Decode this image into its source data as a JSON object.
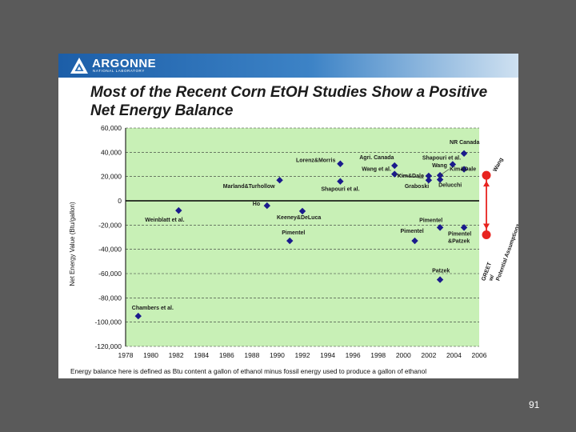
{
  "logo": {
    "name": "ARGONNE",
    "subtitle": "NATIONAL LABORATORY"
  },
  "slide_title": "Most of the Recent Corn EtOH Studies Show a Positive Net Energy Balance",
  "footnote": "Energy balance here is defined as Btu content a gallon of ethanol minus fossil energy used to produce a gallon of ethanol",
  "page_number": "91",
  "colors": {
    "background": "#5a5a5a",
    "banner": "#1c5ea8",
    "plot_fill": "#c8f0b6",
    "marker": "#1a1a8c",
    "greet": "#e8231f"
  },
  "chart_data": {
    "type": "scatter",
    "title": "",
    "xlabel": "",
    "ylabel": "Net Energy Value (Btu/gallon)",
    "xlim": [
      1978,
      2006
    ],
    "ylim": [
      -120000,
      60000
    ],
    "x_ticks": [
      "1978",
      "1980",
      "1982",
      "1984",
      "1986",
      "1988",
      "1990",
      "1992",
      "1994",
      "1996",
      "1998",
      "2000",
      "2002",
      "2004",
      "2006"
    ],
    "y_ticks": [
      "60,000",
      "40,000",
      "20,000",
      "0",
      "-20,000",
      "-40,000",
      "-60,000",
      "-80,000",
      "-100,000",
      "-120,000"
    ],
    "grid": "horizontal dashed",
    "points": [
      {
        "x": 1979.0,
        "y": -95000,
        "label": "Chambers et al."
      },
      {
        "x": 1982.2,
        "y": -8000,
        "label": "Weinblatt et al."
      },
      {
        "x": 1989.2,
        "y": -4000,
        "label": "Ho"
      },
      {
        "x": 1990.2,
        "y": 17000,
        "label": "Marland&Turhollow"
      },
      {
        "x": 1991.0,
        "y": -33000,
        "label": "Pimentel"
      },
      {
        "x": 1992.0,
        "y": -8500,
        "label": "Keeney&DeLuca"
      },
      {
        "x": 1995.0,
        "y": 30500,
        "label": "Lorenz&Morris"
      },
      {
        "x": 1995.0,
        "y": 16000,
        "label": "Shapouri et al."
      },
      {
        "x": 1999.3,
        "y": 29000,
        "label": "Agri. Canada"
      },
      {
        "x": 1999.3,
        "y": 22000,
        "label": "Wang et al."
      },
      {
        "x": 2000.9,
        "y": -33000,
        "label": "Pimentel"
      },
      {
        "x": 2002.0,
        "y": 20500,
        "label": "Kim&Dale"
      },
      {
        "x": 2002.0,
        "y": 17000,
        "label": "Graboski"
      },
      {
        "x": 2002.9,
        "y": 21000,
        "label": "Wang"
      },
      {
        "x": 2002.9,
        "y": 17500,
        "label": "Delucchi"
      },
      {
        "x": 2002.9,
        "y": -22000,
        "label": "Pimentel"
      },
      {
        "x": 2002.9,
        "y": -65000,
        "label": "Patzek"
      },
      {
        "x": 2003.9,
        "y": 30000,
        "label": "Shapouri et al."
      },
      {
        "x": 2004.8,
        "y": 39000,
        "label": "NR Canada"
      },
      {
        "x": 2004.8,
        "y": 26000,
        "label": "Kim&Dale"
      },
      {
        "x": 2004.8,
        "y": -22000,
        "label": "Pimentel&Patzek"
      }
    ],
    "greet_range": {
      "high": 21000,
      "low": -28000,
      "high_label": "Wang",
      "low_label": "GREET w/ Potential Assumptions"
    }
  }
}
